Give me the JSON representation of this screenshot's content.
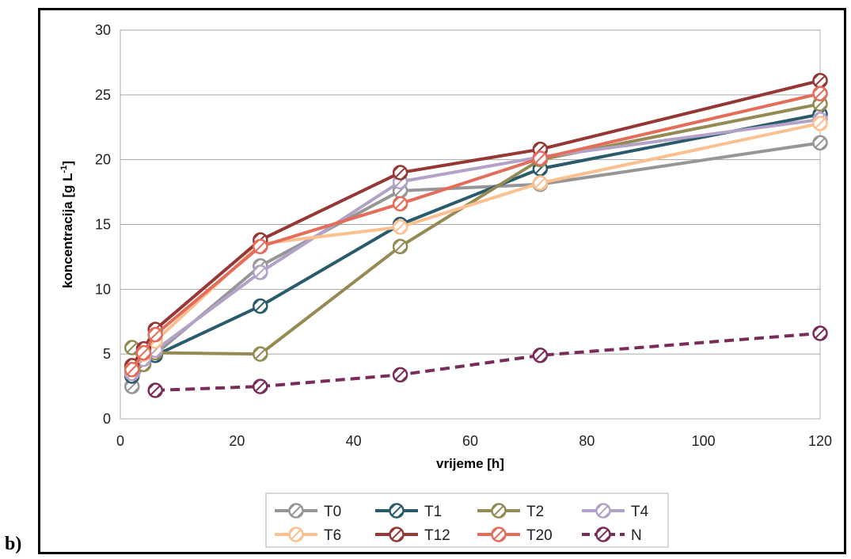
{
  "panel_label": "b)",
  "chart_data": {
    "type": "line",
    "title": "",
    "xlabel": "vrijeme [h]",
    "ylabel_main": "koncentracija  [g L",
    "ylabel_sup": "-1",
    "ylabel_end": "]",
    "xlim": [
      0,
      120
    ],
    "ylim": [
      0,
      30
    ],
    "xticks": [
      0,
      20,
      40,
      60,
      80,
      100,
      120
    ],
    "yticks": [
      0,
      5,
      10,
      15,
      20,
      25,
      30
    ],
    "grid": "horizontal",
    "legend_position": "bottom",
    "series": [
      {
        "name": "T0",
        "color": "#969696",
        "dash": false,
        "x": [
          2,
          4,
          6,
          24,
          48,
          72,
          120
        ],
        "y": [
          2.5,
          4.2,
          5.0,
          11.8,
          17.6,
          18.1,
          21.3
        ]
      },
      {
        "name": "T1",
        "color": "#2a5b6c",
        "dash": false,
        "x": [
          2,
          4,
          6,
          24,
          48,
          72,
          120
        ],
        "y": [
          3.3,
          4.5,
          4.9,
          8.7,
          15.0,
          19.3,
          23.5
        ]
      },
      {
        "name": "T2",
        "color": "#948a54",
        "dash": false,
        "x": [
          2,
          4,
          6,
          24,
          48,
          72,
          120
        ],
        "y": [
          5.5,
          4.2,
          5.1,
          5.0,
          13.3,
          20.0,
          24.3
        ]
      },
      {
        "name": "T4",
        "color": "#b3a2c7",
        "dash": false,
        "x": [
          2,
          4,
          6,
          24,
          48,
          72,
          120
        ],
        "y": [
          3.5,
          4.6,
          5.3,
          11.3,
          18.3,
          20.2,
          23.1
        ]
      },
      {
        "name": "T6",
        "color": "#fac090",
        "dash": false,
        "x": [
          2,
          4,
          6,
          24,
          48,
          72,
          120
        ],
        "y": [
          3.9,
          5.0,
          6.0,
          13.5,
          14.8,
          18.2,
          22.8
        ]
      },
      {
        "name": "T12",
        "color": "#953735",
        "dash": false,
        "x": [
          2,
          4,
          6,
          24,
          48,
          72,
          120
        ],
        "y": [
          4.1,
          5.4,
          6.9,
          13.8,
          19.0,
          20.8,
          26.1
        ]
      },
      {
        "name": "T20",
        "color": "#e46c5a",
        "dash": false,
        "x": [
          2,
          4,
          6,
          24,
          48,
          72,
          120
        ],
        "y": [
          3.8,
          5.1,
          6.5,
          13.3,
          16.6,
          20.1,
          25.1
        ]
      },
      {
        "name": "N",
        "color": "#772c5a",
        "dash": true,
        "x": [
          6,
          24,
          48,
          72,
          120
        ],
        "y": [
          2.2,
          2.5,
          3.4,
          4.9,
          6.6
        ]
      }
    ]
  }
}
